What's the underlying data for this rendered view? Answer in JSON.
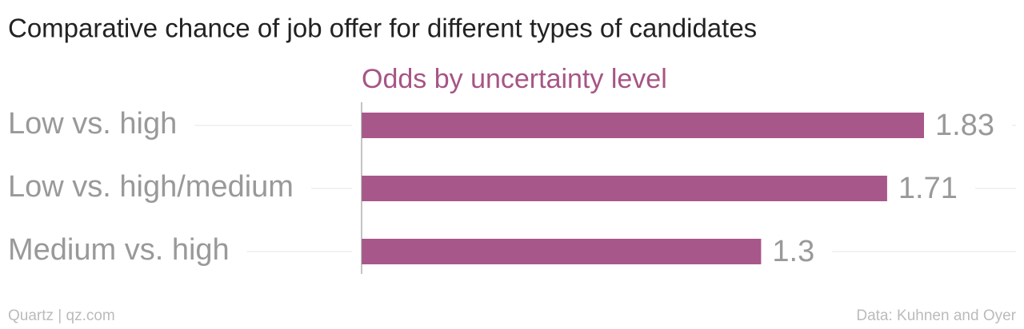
{
  "chart_data": {
    "type": "bar",
    "orientation": "horizontal",
    "title": "Comparative chance of job offer for different types of candidates",
    "subtitle": "Odds by uncertainty level",
    "categories": [
      "Low vs. high",
      "Low vs. high/medium",
      "Medium vs. high"
    ],
    "values": [
      1.83,
      1.71,
      1.3
    ],
    "color": "#a8578a",
    "credit": "Quartz | qz.com",
    "source": "Data: Kuhnen and Oyer"
  }
}
